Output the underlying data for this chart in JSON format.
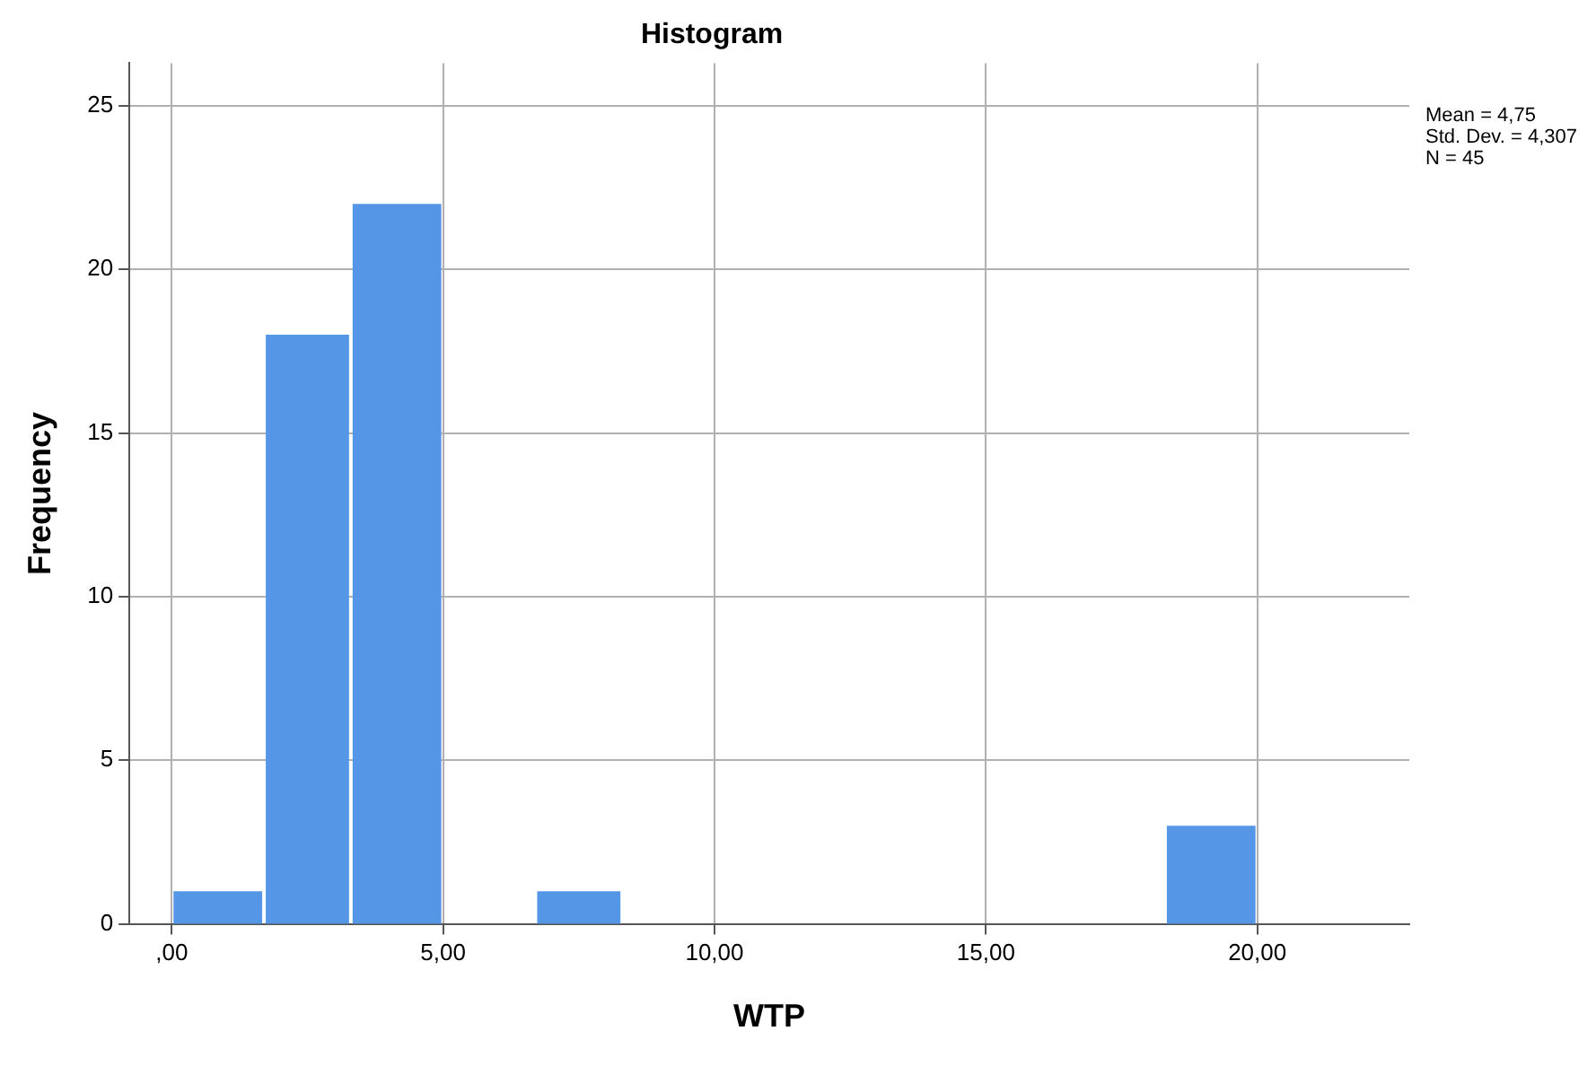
{
  "chart_data": {
    "type": "histogram",
    "title": "Histogram",
    "xlabel": "WTP",
    "ylabel": "Frequency",
    "bins": [
      0,
      1.7,
      3.3,
      5,
      6.7,
      8.3,
      18.3,
      20
    ],
    "values": [
      1,
      18,
      22,
      0,
      1,
      0,
      3
    ],
    "color": "#5596e6",
    "xlim": [
      -0.78,
      22.8
    ],
    "xticks": [
      {
        "value": 0,
        "label": ",00"
      },
      {
        "value": 5,
        "label": "5,00"
      },
      {
        "value": 10,
        "label": "10,00"
      },
      {
        "value": 15,
        "label": "15,00"
      },
      {
        "value": 20,
        "label": "20,00"
      }
    ],
    "ylim": [
      0,
      26.3
    ],
    "yticks": [
      0,
      5,
      10,
      15,
      20,
      25
    ],
    "grid": true,
    "annotations": [
      "Mean = 4,75",
      "Std. Dev. = 4,307",
      "N = 45"
    ]
  }
}
